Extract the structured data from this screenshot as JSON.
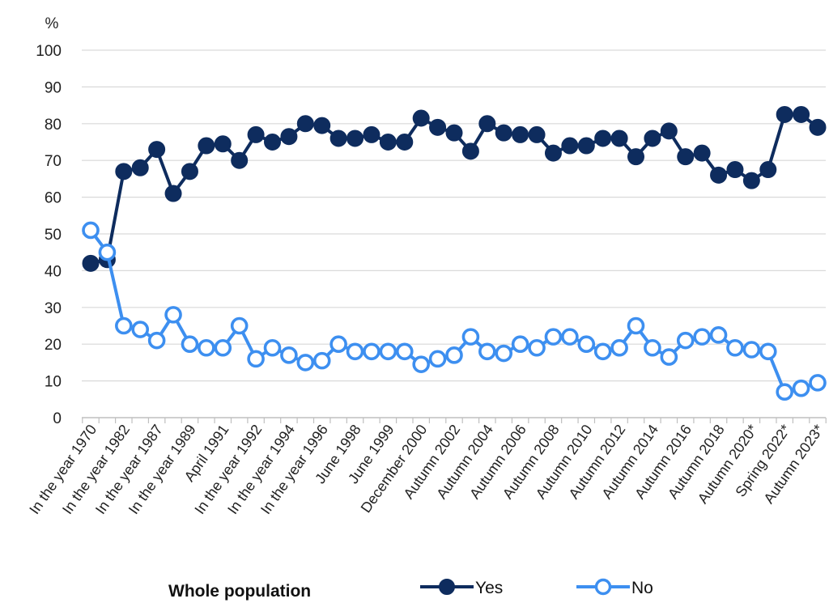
{
  "chart_data": {
    "type": "line",
    "ylabel": "%",
    "ylim": [
      0,
      100
    ],
    "yticks": [
      0,
      10,
      20,
      30,
      40,
      50,
      60,
      70,
      80,
      90,
      100
    ],
    "grid": "horizontal",
    "legend_position": "bottom",
    "legend_title": "Whole population",
    "tick_labels": [
      "In the year 1970",
      "In the year 1982",
      "In the year 1987",
      "In the year 1989",
      "April 1991",
      "In the year 1992",
      "In the year 1994",
      "In the year 1996",
      "June 1998",
      "June 1999",
      "December 2000",
      "Autumn 2002",
      "Autumn 2004",
      "Autumn 2006",
      "Autumn 2008",
      "Autumn 2010",
      "Autumn 2012",
      "Autumn 2014",
      "Autumn 2016",
      "Autumn 2018",
      "Autumn 2020*",
      "Spring 2022*",
      "Autumn 2023*"
    ],
    "series": [
      {
        "name": "Yes",
        "color": "#0e2c5e",
        "marker": "filled-circle",
        "values": [
          42,
          43,
          67,
          68,
          73,
          61,
          67,
          74,
          74.5,
          70,
          77,
          75,
          76.5,
          80,
          79.5,
          76,
          76,
          77,
          75,
          75,
          81.5,
          79,
          77.5,
          72.5,
          80,
          77.5,
          77,
          77,
          72,
          74,
          74,
          76,
          76,
          71,
          76,
          78,
          71,
          72,
          66,
          67.5,
          64.5,
          67.5,
          82.5,
          82.5,
          79
        ]
      },
      {
        "name": "No",
        "color": "#3d8ff0",
        "marker": "hollow-circle",
        "values": [
          51,
          45,
          25,
          24,
          21,
          28,
          20,
          19,
          19,
          25,
          16,
          19,
          17,
          15,
          15.5,
          20,
          18,
          18,
          18,
          18,
          14.5,
          16,
          17,
          22,
          18,
          17.5,
          20,
          19,
          22,
          22,
          20,
          18,
          19,
          25,
          19,
          16.5,
          21,
          22,
          22.5,
          19,
          18.5,
          18,
          7,
          8,
          9.5
        ]
      }
    ]
  }
}
